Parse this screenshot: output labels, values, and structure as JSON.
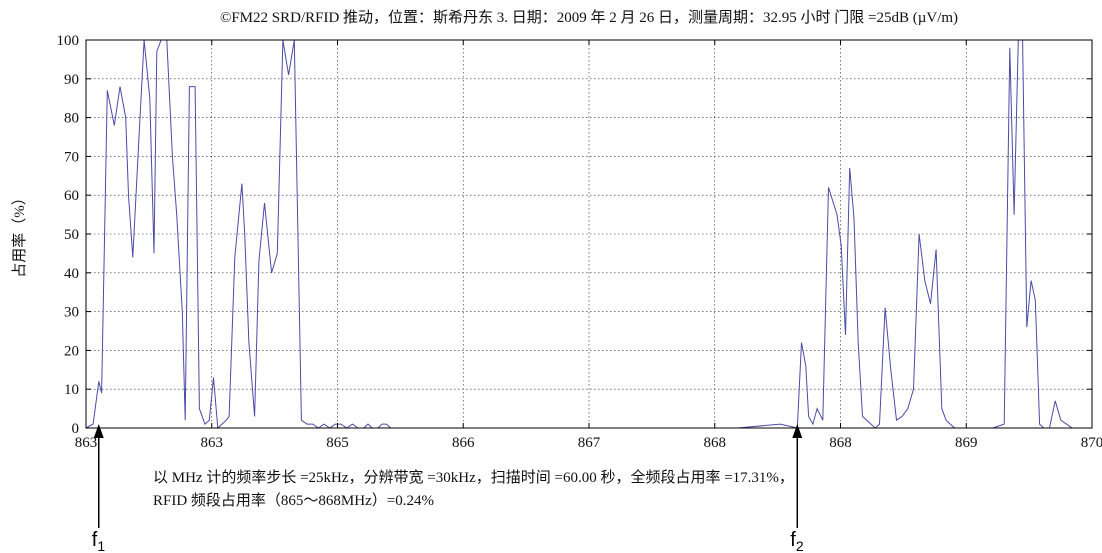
{
  "chart_data": {
    "type": "line",
    "title": "©FM22 SRD/RFID 推动，位置：斯希丹东 3. 日期：2009 年 2 月 26 日，测量周期：32.95 小时 门限 =25dB (µV/m)",
    "ylabel": "占用率（%）",
    "xlabel": "",
    "xlim": [
      862.9,
      870.0
    ],
    "ylim": [
      0,
      100
    ],
    "yticks": [
      0,
      10,
      20,
      30,
      40,
      50,
      60,
      70,
      80,
      90,
      100
    ],
    "xtick_labels": [
      "863",
      "863",
      "865",
      "866",
      "867",
      "868",
      "868",
      "869",
      "870"
    ],
    "grid": true,
    "line_color": "#4b4ba6",
    "series": [
      {
        "x": [
          862.9,
          862.95,
          862.99,
          863.01,
          863.05,
          863.1,
          863.14,
          863.18,
          863.2,
          863.23,
          863.27,
          863.31,
          863.35,
          863.38,
          863.4,
          863.43,
          863.47,
          863.51,
          863.54,
          863.58,
          863.6,
          863.63,
          863.67,
          863.7,
          863.74,
          863.77,
          863.8,
          863.83,
          863.86,
          863.89,
          863.91,
          863.95,
          864.0,
          864.02,
          864.05,
          864.09,
          864.12,
          864.16,
          864.21,
          864.25,
          864.29,
          864.33,
          864.37,
          864.42,
          864.46,
          864.5,
          864.54,
          864.58,
          864.62,
          864.66,
          864.7,
          864.74,
          864.78,
          864.82,
          864.86,
          864.89,
          864.92,
          864.96,
          864.99,
          865.02,
          865.05,
          865.1,
          865.2,
          865.5,
          866.0,
          866.5,
          867.0,
          867.5,
          867.8,
          867.92,
          867.95,
          867.98,
          868.0,
          868.03,
          868.06,
          868.1,
          868.14,
          868.2,
          868.23,
          868.26,
          868.29,
          868.32,
          868.35,
          868.38,
          868.41,
          868.44,
          868.47,
          868.5,
          868.54,
          868.58,
          868.62,
          868.66,
          868.7,
          868.74,
          868.78,
          868.82,
          868.86,
          868.9,
          868.94,
          868.97,
          869.0,
          869.03,
          869.06,
          869.09,
          869.13,
          869.2,
          869.3,
          869.38,
          869.42,
          869.45,
          869.48,
          869.51,
          869.54,
          869.57,
          869.6,
          869.63,
          869.66,
          869.7,
          869.74,
          869.78,
          869.82,
          869.86,
          869.9,
          869.95,
          870.0
        ],
        "y": [
          0,
          1,
          12,
          9,
          87,
          78,
          88,
          80,
          60,
          44,
          72,
          100,
          85,
          45,
          97,
          100,
          100,
          70,
          55,
          30,
          2,
          88,
          88,
          5,
          1,
          2,
          13,
          0,
          1,
          2,
          3,
          44,
          63,
          50,
          22,
          3,
          43,
          58,
          40,
          45,
          100,
          91,
          100,
          2,
          1,
          1,
          0,
          1,
          0,
          1,
          1,
          0,
          1,
          0,
          0,
          1,
          0,
          0,
          1,
          1,
          0,
          0,
          0,
          0,
          0,
          0,
          0,
          0,
          1,
          0,
          22,
          16,
          3,
          1,
          5,
          2,
          62,
          55,
          47,
          24,
          67,
          54,
          22,
          3,
          2,
          1,
          0,
          1,
          31,
          15,
          2,
          3,
          5,
          10,
          50,
          38,
          32,
          46,
          5,
          2,
          1,
          0,
          0,
          0,
          0,
          0,
          0,
          1,
          98,
          55,
          100,
          100,
          26,
          38,
          33,
          1,
          0,
          0,
          7,
          2,
          1,
          0,
          0,
          0,
          0
        ]
      }
    ],
    "annotations": [
      {
        "label": "f",
        "sub": "1",
        "x": 862.99
      },
      {
        "label": "f",
        "sub": "2",
        "x": 867.92
      }
    ]
  },
  "caption": {
    "line1": "以 MHz 计的频率步长 =25kHz，分辨带宽 =30kHz，扫描时间 =60.00 秒，全频段占用率 =17.31%，",
    "line2": "RFID 频段占用率（865～868MHz）=0.24%"
  }
}
